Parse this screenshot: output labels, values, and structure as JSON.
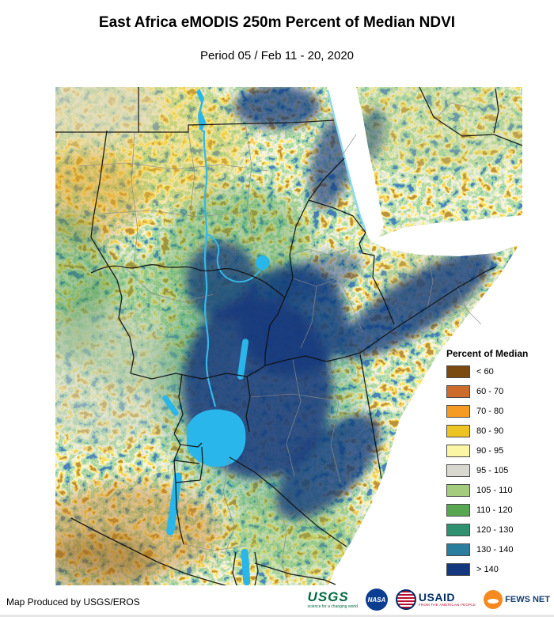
{
  "header": {
    "title": "East Africa eMODIS 250m Percent of Median NDVI",
    "subtitle": "Period 05 / Feb 11 - 20, 2020"
  },
  "legend": {
    "title": "Percent of Median",
    "items": [
      {
        "label": "< 60",
        "color": "#7a4a11"
      },
      {
        "label": "60 - 70",
        "color": "#cc6b2c"
      },
      {
        "label": "70 - 80",
        "color": "#f59a22"
      },
      {
        "label": "80 - 90",
        "color": "#edc421"
      },
      {
        "label": "90 - 95",
        "color": "#fbf6a4"
      },
      {
        "label": "95 - 105",
        "color": "#d8d8d0"
      },
      {
        "label": "105 - 110",
        "color": "#a3cc7e"
      },
      {
        "label": "110 - 120",
        "color": "#57a651"
      },
      {
        "label": "120 - 130",
        "color": "#2e9170"
      },
      {
        "label": "130 - 140",
        "color": "#2a7f9f"
      },
      {
        "label": "> 140",
        "color": "#14387d"
      }
    ]
  },
  "map": {
    "water_color": "#29b6ea",
    "ocean_color": "#ffffff",
    "country_border_color": "#000000",
    "admin_border_color": "#8a8a8a"
  },
  "footer": {
    "credit": "Map Produced by USGS/EROS"
  },
  "logos": {
    "usgs": {
      "name": "USGS",
      "tagline": "science for a changing world"
    },
    "nasa": {
      "name": "NASA"
    },
    "usaid": {
      "name": "USAID",
      "tagline": "FROM THE AMERICAN PEOPLE"
    },
    "fewsnet": {
      "name": "FEWS NET"
    }
  }
}
